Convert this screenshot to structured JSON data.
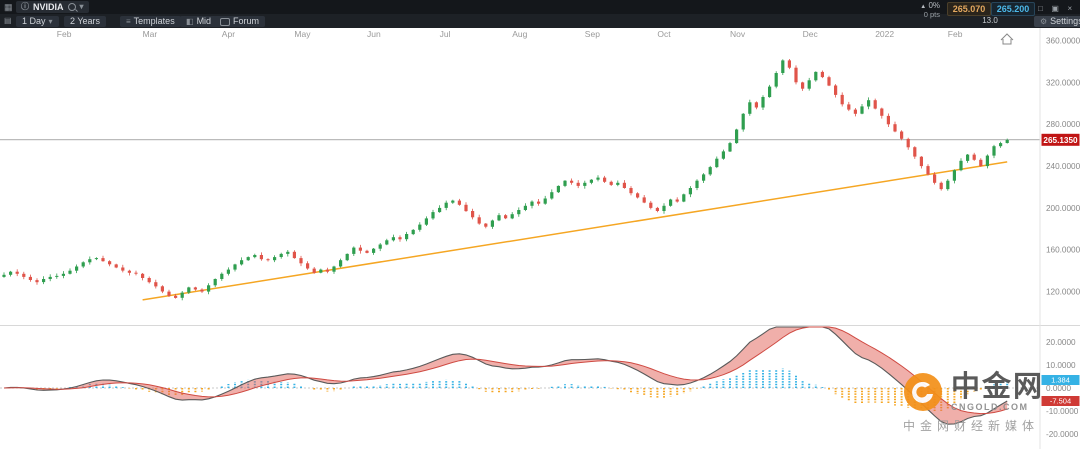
{
  "toolbar": {
    "symbol": "NVIDIA",
    "timeframe_label": "1 Day",
    "range_label": "2 Years",
    "templates_label": "Templates",
    "mid_label": "Mid",
    "forum_label": "Forum",
    "settings_label": "Settings",
    "change_pct": "0%",
    "change_pts": "0 pts",
    "sell_price": "265.070",
    "buy_price": "265.200",
    "spread": "13.0"
  },
  "price_axis": {
    "current_label": "265.1350"
  },
  "watermark": {
    "name": "中金网",
    "domain": "CNGOLD.COM",
    "tagline": "中金网财经新媒体"
  },
  "chart_data": {
    "type": "candlestick",
    "title": "NVIDIA 1 Day, 2 Years",
    "current_price": 265.135,
    "price_axis_ticks": [
      360,
      320,
      280,
      240,
      200,
      160,
      120
    ],
    "months": [
      {
        "label": "Feb",
        "i": 8
      },
      {
        "label": "Mar",
        "i": 21
      },
      {
        "label": "Apr",
        "i": 33
      },
      {
        "label": "May",
        "i": 44
      },
      {
        "label": "Jun",
        "i": 55
      },
      {
        "label": "Jul",
        "i": 66
      },
      {
        "label": "Aug",
        "i": 77
      },
      {
        "label": "Sep",
        "i": 88
      },
      {
        "label": "Oct",
        "i": 99
      },
      {
        "label": "Nov",
        "i": 110
      },
      {
        "label": "Dec",
        "i": 121
      },
      {
        "label": "2022",
        "i": 132
      },
      {
        "label": "Feb",
        "i": 143
      }
    ],
    "closes": [
      136,
      139,
      137,
      134,
      131,
      129,
      132,
      134,
      135,
      137,
      140,
      144,
      148,
      151,
      152,
      149,
      146,
      143,
      140,
      138,
      137,
      133,
      129,
      125,
      120,
      116,
      114,
      119,
      124,
      122,
      120,
      126,
      132,
      137,
      141,
      146,
      150,
      153,
      155,
      151,
      150,
      153,
      156,
      158,
      152,
      147,
      142,
      138,
      141,
      139,
      144,
      150,
      156,
      162,
      159,
      157,
      161,
      165,
      169,
      172,
      170,
      175,
      179,
      184,
      190,
      196,
      200,
      205,
      207,
      203,
      197,
      191,
      185,
      182,
      188,
      193,
      190,
      194,
      198,
      202,
      206,
      204,
      209,
      215,
      221,
      226,
      224,
      221,
      224,
      227,
      229,
      225,
      222,
      224,
      219,
      214,
      210,
      205,
      200,
      197,
      202,
      208,
      206,
      213,
      219,
      226,
      232,
      239,
      247,
      254,
      262,
      275,
      290,
      301,
      296,
      306,
      316,
      329,
      341,
      334,
      320,
      314,
      322,
      330,
      325,
      317,
      308,
      299,
      294,
      290,
      297,
      303,
      295,
      288,
      280,
      273,
      266,
      258,
      249,
      240,
      232,
      224,
      218,
      226,
      236,
      245,
      251,
      246,
      240,
      250,
      259,
      262,
      265
    ],
    "trendline": {
      "i1": 21,
      "p1": 112,
      "i2": 152,
      "p2": 244
    },
    "indicator": {
      "type": "MACD",
      "params": "12,26,9",
      "axis_ticks": [
        20,
        10,
        0,
        -10,
        -20
      ],
      "badges": [
        {
          "value": "1.384",
          "color": "#35b2e5"
        },
        {
          "value": "-7.504",
          "color": "#cf3a35"
        }
      ]
    },
    "colors": {
      "up": "#2f9e4f",
      "down": "#e0544a",
      "trendline": "#f5a623",
      "hist_pos": "#35b2e5",
      "hist_neg": "#f5a623",
      "macd_line": "#5a5a5a",
      "signal_line": "#cf4a42",
      "macd_fill": "rgba(225,95,85,0.5)",
      "price_label_bg": "#c01515",
      "price_line": "#777777"
    }
  }
}
